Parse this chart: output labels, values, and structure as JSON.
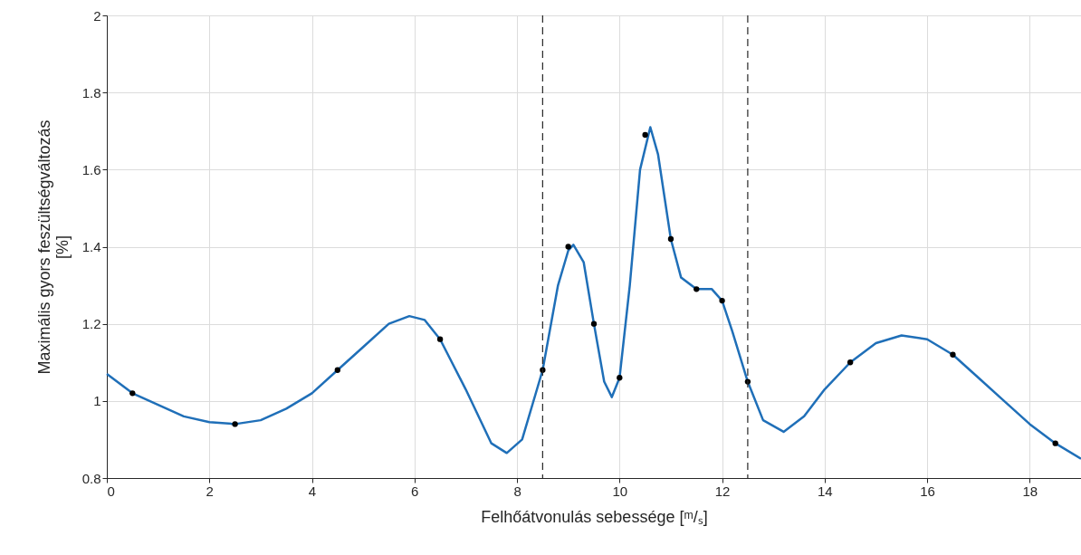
{
  "chart_data": {
    "type": "line",
    "xlabel": "Felhőátvonulás sebessége [ᵐ/ₛ]",
    "ylabel": "Maximális gyors feszültségváltozás\n[%]",
    "xlim": [
      0,
      19
    ],
    "xticks": [
      0,
      2,
      4,
      6,
      8,
      10,
      12,
      14,
      16,
      18
    ],
    "ylim": [
      0.8,
      2
    ],
    "yticks": [
      0.8,
      1,
      1.2,
      1.4,
      1.6,
      1.8,
      2
    ],
    "grid": true,
    "series": [
      {
        "type": "line",
        "color": "#1f6fb8",
        "marker": "none",
        "x": [
          0,
          0.5,
          1,
          1.5,
          2,
          2.5,
          3,
          3.5,
          4,
          4.5,
          5,
          5.5,
          5.9,
          6.2,
          6.5,
          7,
          7.5,
          7.8,
          8.1,
          8.5,
          8.8,
          9,
          9.1,
          9.3,
          9.5,
          9.7,
          9.85,
          10,
          10.2,
          10.4,
          10.6,
          10.75,
          11,
          11.2,
          11.5,
          11.8,
          12,
          12.2,
          12.5,
          12.8,
          13.2,
          13.6,
          14,
          14.5,
          15,
          15.5,
          16,
          16.5,
          17,
          17.5,
          18,
          18.5,
          19
        ],
        "values": [
          1.07,
          1.02,
          0.99,
          0.96,
          0.945,
          0.94,
          0.95,
          0.98,
          1.02,
          1.08,
          1.14,
          1.2,
          1.22,
          1.21,
          1.16,
          1.03,
          0.89,
          0.865,
          0.9,
          1.08,
          1.3,
          1.39,
          1.405,
          1.36,
          1.2,
          1.05,
          1.01,
          1.06,
          1.3,
          1.6,
          1.71,
          1.64,
          1.42,
          1.32,
          1.29,
          1.29,
          1.26,
          1.18,
          1.05,
          0.95,
          0.92,
          0.96,
          1.03,
          1.1,
          1.15,
          1.17,
          1.16,
          1.12,
          1.06,
          1.0,
          0.94,
          0.89,
          0.85
        ]
      },
      {
        "type": "scatter",
        "color": "#000000",
        "marker": "circle",
        "x": [
          0.5,
          2.5,
          4.5,
          6.5,
          8.5,
          9,
          9.5,
          10,
          10.5,
          11,
          11.5,
          12,
          12.5,
          14.5,
          16.5,
          18.5
        ],
        "values": [
          1.02,
          0.94,
          1.08,
          1.16,
          1.08,
          1.4,
          1.2,
          1.06,
          1.69,
          1.42,
          1.29,
          1.26,
          1.05,
          1.1,
          1.12,
          0.89
        ]
      }
    ],
    "ref_lines": [
      {
        "axis": "x",
        "value": 8.5,
        "color": "#262626",
        "line_style": "dashed"
      },
      {
        "axis": "x",
        "value": 12.5,
        "color": "#262626",
        "line_style": "dashed"
      }
    ]
  }
}
